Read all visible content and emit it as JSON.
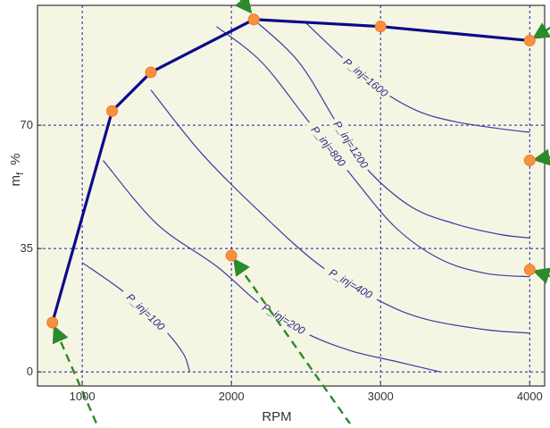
{
  "chart_data": {
    "type": "line",
    "xlabel": "RPM",
    "ylabel": "m",
    "ylabel_sub": "f",
    "ylabel_unit": "%",
    "xlim": [
      700,
      4100
    ],
    "ylim": [
      -4,
      104
    ],
    "x_ticks": [
      "1000",
      "2000",
      "3000",
      "4000"
    ],
    "x_tick_values": [
      1000,
      2000,
      3000,
      4000
    ],
    "y_ticks": [
      "0",
      "35",
      "70"
    ],
    "y_tick_values": [
      0,
      35,
      70
    ],
    "grid": true,
    "colors": {
      "plot_bg": "#f5f5e3",
      "grid": "#1c1cb4",
      "boundary": "#0a0a8c",
      "contour": "#3a3aa6",
      "marker": "#f7913f",
      "arrow": "#2b8a2b"
    },
    "boundary": {
      "x": [
        800,
        1200,
        1460,
        2150,
        3000,
        4000
      ],
      "y": [
        14,
        74,
        85,
        100,
        98,
        94
      ]
    },
    "operating_points": {
      "x": [
        800,
        1200,
        1460,
        2150,
        3000,
        4000,
        4000,
        2000,
        4000
      ],
      "y": [
        14,
        74,
        85,
        100,
        98,
        94,
        60,
        33,
        29
      ]
    },
    "contours": [
      {
        "label": "P_inj=100",
        "x": [
          1000,
          1300,
          1550,
          1680,
          1720
        ],
        "y": [
          31,
          22,
          12,
          5,
          0
        ]
      },
      {
        "label": "P_inj=200",
        "x": [
          1140,
          1500,
          1900,
          2200,
          2500,
          2800,
          3100,
          3400
        ],
        "y": [
          60,
          42,
          30,
          19,
          11,
          6,
          3,
          0
        ]
      },
      {
        "label": "P_inj=400",
        "x": [
          1460,
          1800,
          2200,
          2600,
          3000,
          3300,
          3700,
          4000
        ],
        "y": [
          80,
          62,
          45,
          30,
          20,
          15,
          12,
          11
        ]
      },
      {
        "label": "P_inj=800",
        "x": [
          1900,
          2200,
          2500,
          2800,
          3100,
          3400,
          3700,
          4000
        ],
        "y": [
          98,
          88,
          72,
          56,
          41,
          32,
          28,
          27
        ]
      },
      {
        "label": "P_inj=1200",
        "x": [
          2150,
          2450,
          2700,
          2900,
          3200,
          3500,
          3800,
          4000
        ],
        "y": [
          100,
          88,
          71,
          58,
          47,
          42,
          39,
          38
        ]
      },
      {
        "label": "P_inj=1600",
        "x": [
          2500,
          2800,
          3000,
          3250,
          3500,
          3800,
          4000
        ],
        "y": [
          99,
          87,
          80,
          74,
          71,
          69,
          68
        ]
      }
    ],
    "arrows": [
      {
        "from": [
          2000,
          109
        ],
        "to": [
          2150,
          101
        ]
      },
      {
        "from": [
          4150,
          98
        ],
        "to": [
          4000,
          94
        ]
      },
      {
        "from": [
          4150,
          61
        ],
        "to": [
          4000,
          60
        ]
      },
      {
        "from": [
          4150,
          27
        ],
        "to": [
          4000,
          29
        ]
      },
      {
        "from": [
          2850,
          -18
        ],
        "to": [
          2000,
          33
        ]
      },
      {
        "from": [
          1130,
          -18
        ],
        "to": [
          800,
          14
        ]
      }
    ]
  }
}
